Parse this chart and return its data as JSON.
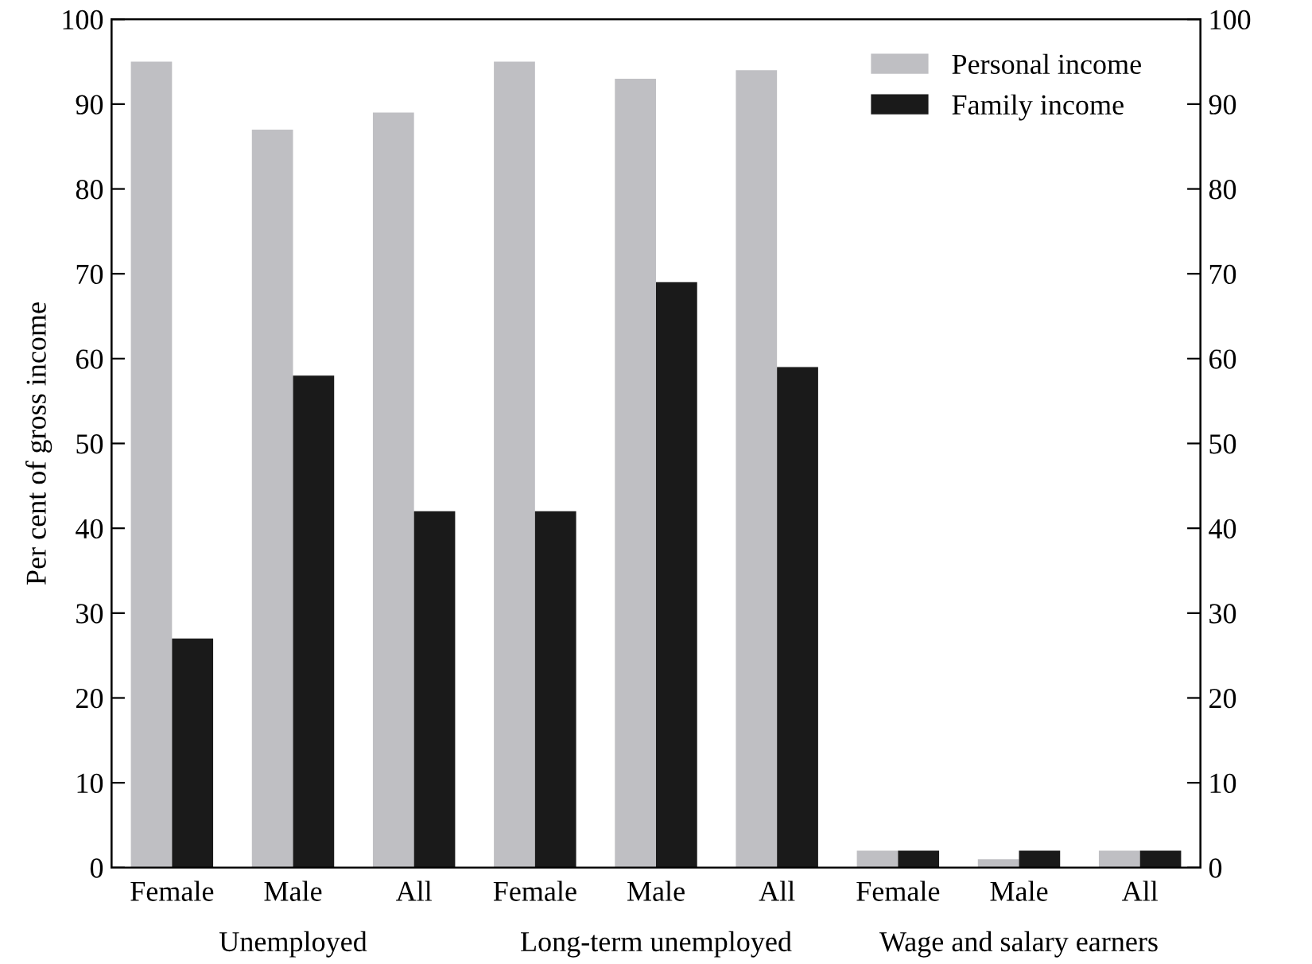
{
  "chart_data": {
    "type": "bar",
    "ylabel": "Per cent of gross income",
    "categories": [
      "Female",
      "Male",
      "All",
      "Female",
      "Male",
      "All",
      "Female",
      "Male",
      "All"
    ],
    "series": [
      {
        "name": "Personal income",
        "color": "#bfbfc3",
        "values": [
          95,
          87,
          89,
          95,
          93,
          94,
          2,
          1,
          2
        ]
      },
      {
        "name": "Family income",
        "color": "#1a1a1a",
        "values": [
          27,
          58,
          42,
          42,
          69,
          59,
          2,
          2,
          2
        ]
      }
    ],
    "annotations": [
      "Unemployed",
      "Long-term unemployed",
      "Wage and salary earners"
    ],
    "ylim": [
      0,
      100
    ],
    "yticks": [
      0,
      10,
      20,
      30,
      40,
      50,
      60,
      70,
      80,
      90,
      100
    ],
    "y2lim": [
      0,
      100
    ],
    "y2ticks": [
      0,
      10,
      20,
      30,
      40,
      50,
      60,
      70,
      80,
      90,
      100
    ],
    "grid": false,
    "legend": "top right"
  }
}
